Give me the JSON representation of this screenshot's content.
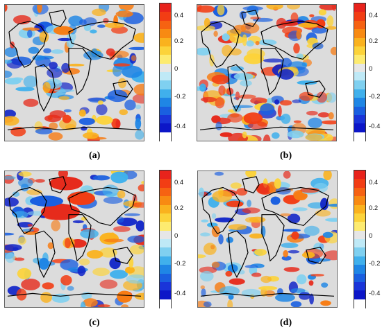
{
  "colorbar": {
    "ticks": [
      "0.4",
      "0.2",
      "0",
      "-0.2",
      "-0.4"
    ],
    "colors_top_to_bottom": [
      "#e8231c",
      "#f23d14",
      "#f66212",
      "#f88a12",
      "#fab21e",
      "#fcd33a",
      "#fdeb70",
      "#e6e6e6",
      "#bfe9f6",
      "#7fd0f0",
      "#40b0ec",
      "#1f86e5",
      "#1a5fe0",
      "#1a35d9",
      "#0c16c8",
      "#ffffff"
    ]
  },
  "panels": [
    {
      "id": "a",
      "label": "(a)"
    },
    {
      "id": "b",
      "label": "(b)"
    },
    {
      "id": "c",
      "label": "(c)"
    },
    {
      "id": "d",
      "label": "(d)"
    }
  ],
  "palette": {
    "red": "#e62b1c",
    "orange": "#f77c14",
    "yellow": "#fcd33a",
    "lightblue": "#7fd0f0",
    "blue": "#1f6be0",
    "darkblue": "#1226c8",
    "land_outline": "#000000",
    "background": "#dcdcdc"
  }
}
